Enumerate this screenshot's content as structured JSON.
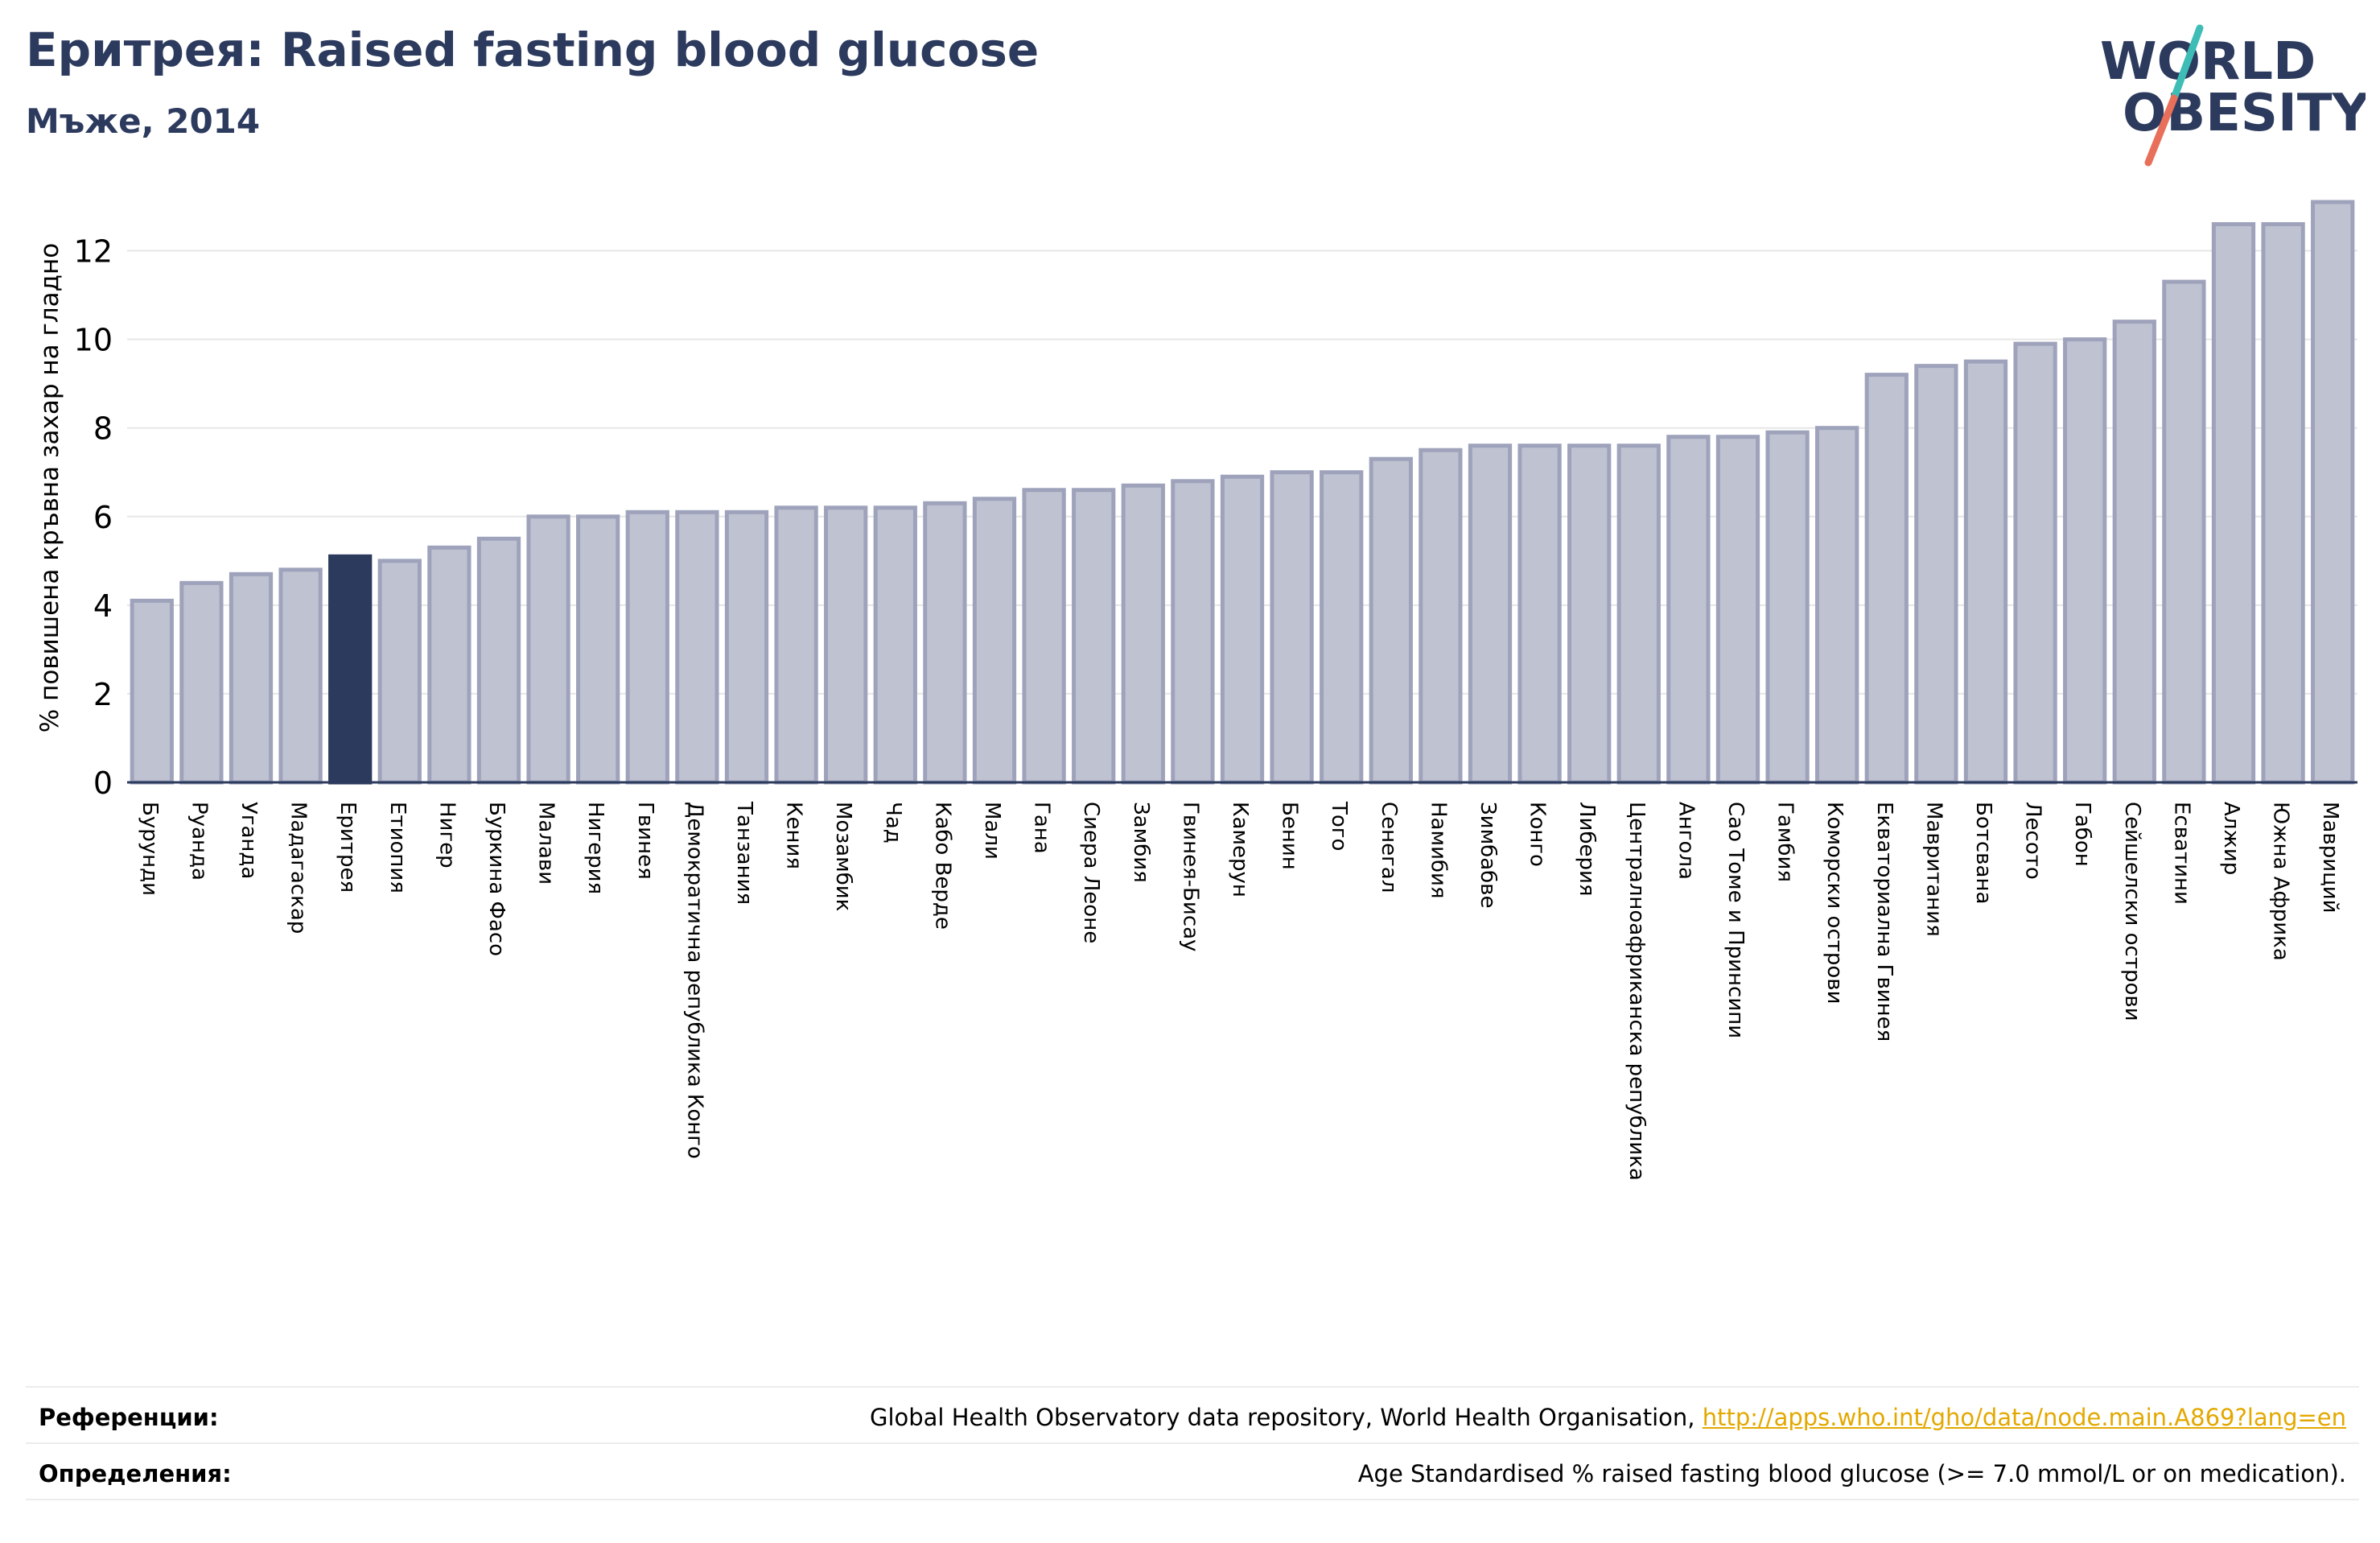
{
  "header": {
    "title": "Еритрея: Raised fasting blood glucose",
    "subtitle": "Мъже, 2014"
  },
  "logo": {
    "line1": "WORLD",
    "line2": "OBESITY"
  },
  "colors": {
    "highlight": "#2c3a5e",
    "bar_fill": "#bfc2d1",
    "bar_edge": "#9ea3bb",
    "grid": "#e6e6e6",
    "logo_slash_top": "#3dbdb5",
    "logo_slash_bottom": "#e8705a"
  },
  "chart_data": {
    "type": "bar",
    "ylabel": "% повишена кръвна захар на гладно",
    "ylim": [
      0,
      13.3
    ],
    "yticks": [
      0,
      2,
      4,
      6,
      8,
      10,
      12
    ],
    "grid": true,
    "highlight_category": "Еритрея",
    "categories": [
      "Бурунди",
      "Руанда",
      "Уганда",
      "Мадагаскар",
      "Еритрея",
      "Етиопия",
      "Нигер",
      "Буркина Фасо",
      "Малави",
      "Нигерия",
      "Гвинея",
      "Демократична република Конго",
      "Танзания",
      "Кения",
      "Мозамбик",
      "Чад",
      "Кабо Верде",
      "Мали",
      "Гана",
      "Сиера Леоне",
      "Замбия",
      "Гвинея-Бисау",
      "Камерун",
      "Бенин",
      "Того",
      "Сенегал",
      "Намибия",
      "Зимбабве",
      "Конго",
      "Либерия",
      "Централноафриканска република",
      "Ангола",
      "Сао Томе и Принсипи",
      "Гамбия",
      "Коморски острови",
      "Екваториална Гвинея",
      "Мавритания",
      "Ботсвана",
      "Лесото",
      "Габон",
      "Сейшелски острови",
      "Есватини",
      "Алжир",
      "Южна Африка",
      "Мавриций"
    ],
    "values": [
      4.1,
      4.5,
      4.7,
      4.8,
      5.1,
      5.0,
      5.3,
      5.5,
      6.0,
      6.0,
      6.1,
      6.1,
      6.1,
      6.2,
      6.2,
      6.2,
      6.3,
      6.4,
      6.6,
      6.6,
      6.7,
      6.8,
      6.9,
      7.0,
      7.0,
      7.3,
      7.5,
      7.6,
      7.6,
      7.6,
      7.6,
      7.8,
      7.8,
      7.9,
      8.0,
      9.2,
      9.4,
      9.5,
      9.9,
      10.0,
      10.4,
      11.3,
      12.6,
      12.6,
      13.1
    ]
  },
  "footer": {
    "references_label": "Референции:",
    "references_text": "Global Health Observatory data repository, World Health Organisation, ",
    "references_link": "http://apps.who.int/gho/data/node.main.A869?lang=en",
    "definitions_label": "Определения:",
    "definitions_text": "Age Standardised % raised fasting blood glucose (>= 7.0 mmol/L or on medication)."
  }
}
